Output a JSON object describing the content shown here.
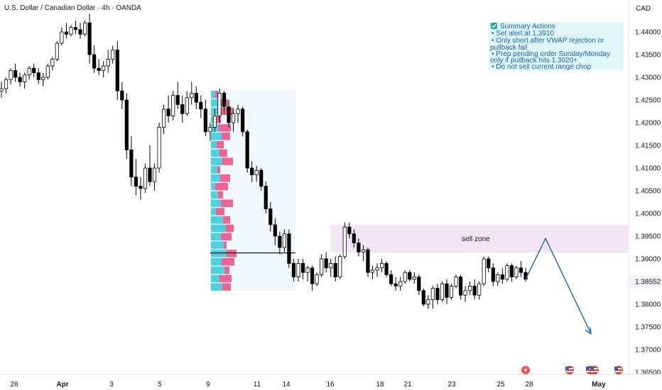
{
  "header": {
    "title": "U.S. Dollar / Canadian Dollar · 4h · OANDA",
    "currency": "CAD"
  },
  "summary": {
    "heading": "Summary Actions",
    "lines": [
      "• Set alert at 1.3910",
      "• Only short after VWAP rejection or",
      "pullback fail",
      "• Prep pending order Sunday/Monday",
      "only if pullback hits 1.3920+",
      "• Do not sell current range chop"
    ]
  },
  "zone": {
    "label": "sell zone",
    "from": 1.3913,
    "to": 1.3975,
    "color": "#f3e5f5"
  },
  "last_price": {
    "value": 1.38552,
    "label": "1.38552"
  },
  "colors": {
    "bullish": "#ffffff",
    "bearish": "#000000",
    "projection": "#1565c0",
    "vp_up": "#4dd0e1",
    "vp_down": "#f06292"
  },
  "chart_data": {
    "type": "candlestick",
    "title": "U.S. Dollar / Canadian Dollar · 4h · OANDA",
    "ylim": [
      1.365,
      1.445
    ],
    "y_ticks": [
      1.365,
      1.37,
      1.375,
      1.38,
      1.385,
      1.39,
      1.395,
      1.4,
      1.405,
      1.41,
      1.415,
      1.42,
      1.425,
      1.43,
      1.435,
      1.44
    ],
    "y_tick_labels": [
      "1.36500",
      "1.37000",
      "1.37500",
      "1.38000",
      "1.38552",
      "1.39000",
      "1.39500",
      "1.40000",
      "1.40500",
      "1.41000",
      "1.41500",
      "1.42000",
      "1.42500",
      "1.43000",
      "1.43500",
      "1.44000"
    ],
    "x_ticks": [
      "28",
      "Apr",
      "3",
      "5",
      "9",
      "11",
      "14",
      "16",
      "18",
      "21",
      "23",
      "25",
      "28",
      "May"
    ],
    "candles": [
      [
        1.427,
        1.429,
        1.4255,
        1.4275
      ],
      [
        1.4275,
        1.43,
        1.4265,
        1.4295
      ],
      [
        1.4295,
        1.432,
        1.4285,
        1.4315
      ],
      [
        1.4315,
        1.433,
        1.429,
        1.43
      ],
      [
        1.43,
        1.431,
        1.428,
        1.429
      ],
      [
        1.429,
        1.431,
        1.4275,
        1.4305
      ],
      [
        1.4305,
        1.4325,
        1.4295,
        1.432
      ],
      [
        1.432,
        1.433,
        1.43,
        1.431
      ],
      [
        1.431,
        1.432,
        1.4285,
        1.4295
      ],
      [
        1.4295,
        1.431,
        1.428,
        1.43
      ],
      [
        1.43,
        1.433,
        1.4295,
        1.4325
      ],
      [
        1.4325,
        1.4345,
        1.4315,
        1.434
      ],
      [
        1.434,
        1.438,
        1.4335,
        1.4375
      ],
      [
        1.4375,
        1.441,
        1.437,
        1.44
      ],
      [
        1.44,
        1.442,
        1.4385,
        1.4395
      ],
      [
        1.4395,
        1.4415,
        1.439,
        1.441
      ],
      [
        1.441,
        1.4425,
        1.4395,
        1.4405
      ],
      [
        1.4405,
        1.442,
        1.4385,
        1.4395
      ],
      [
        1.4395,
        1.4425,
        1.439,
        1.442
      ],
      [
        1.442,
        1.444,
        1.433,
        1.435
      ],
      [
        1.435,
        1.437,
        1.431,
        1.432
      ],
      [
        1.432,
        1.434,
        1.4305,
        1.4315
      ],
      [
        1.4315,
        1.4335,
        1.43,
        1.4325
      ],
      [
        1.4325,
        1.436,
        1.431,
        1.434
      ],
      [
        1.434,
        1.437,
        1.433,
        1.436
      ],
      [
        1.436,
        1.438,
        1.425,
        1.427
      ],
      [
        1.427,
        1.429,
        1.423,
        1.425
      ],
      [
        1.425,
        1.4265,
        1.412,
        1.414
      ],
      [
        1.414,
        1.417,
        1.406,
        1.408
      ],
      [
        1.408,
        1.412,
        1.404,
        1.406
      ],
      [
        1.406,
        1.408,
        1.403,
        1.4055
      ],
      [
        1.4055,
        1.411,
        1.4045,
        1.41
      ],
      [
        1.41,
        1.415,
        1.406,
        1.407
      ],
      [
        1.407,
        1.411,
        1.405,
        1.41
      ],
      [
        1.41,
        1.42,
        1.409,
        1.419
      ],
      [
        1.419,
        1.424,
        1.4175,
        1.423
      ],
      [
        1.423,
        1.426,
        1.42,
        1.4215
      ],
      [
        1.4215,
        1.427,
        1.4205,
        1.426
      ],
      [
        1.426,
        1.429,
        1.423,
        1.424
      ],
      [
        1.424,
        1.426,
        1.42,
        1.422
      ],
      [
        1.422,
        1.427,
        1.4215,
        1.4255
      ],
      [
        1.4255,
        1.429,
        1.424,
        1.4265
      ],
      [
        1.4265,
        1.428,
        1.423,
        1.4245
      ],
      [
        1.4245,
        1.426,
        1.421,
        1.423
      ],
      [
        1.423,
        1.425,
        1.417,
        1.418
      ],
      [
        1.418,
        1.42,
        1.416,
        1.419
      ],
      [
        1.419,
        1.423,
        1.418,
        1.4215
      ],
      [
        1.4215,
        1.4275,
        1.42,
        1.4265
      ],
      [
        1.4265,
        1.427,
        1.422,
        1.4235
      ],
      [
        1.4235,
        1.425,
        1.419,
        1.42
      ],
      [
        1.42,
        1.423,
        1.418,
        1.422
      ],
      [
        1.422,
        1.424,
        1.42,
        1.423
      ],
      [
        1.423,
        1.4235,
        1.417,
        1.418
      ],
      [
        1.418,
        1.4185,
        1.409,
        1.41
      ],
      [
        1.41,
        1.4115,
        1.407,
        1.4085
      ],
      [
        1.4085,
        1.4105,
        1.407,
        1.4095
      ],
      [
        1.4095,
        1.41,
        1.405,
        1.406
      ],
      [
        1.406,
        1.407,
        1.4,
        1.401
      ],
      [
        1.401,
        1.4025,
        1.396,
        1.3975
      ],
      [
        1.3975,
        1.399,
        1.393,
        1.395
      ],
      [
        1.395,
        1.396,
        1.391,
        1.3925
      ],
      [
        1.3925,
        1.3965,
        1.3915,
        1.3955
      ],
      [
        1.3955,
        1.3965,
        1.388,
        1.389
      ],
      [
        1.389,
        1.39,
        1.385,
        1.386
      ],
      [
        1.386,
        1.39,
        1.385,
        1.389
      ],
      [
        1.389,
        1.39,
        1.3855,
        1.387
      ],
      [
        1.387,
        1.3885,
        1.385,
        1.388
      ],
      [
        1.388,
        1.3885,
        1.383,
        1.3845
      ],
      [
        1.3845,
        1.387,
        1.384,
        1.3865
      ],
      [
        1.3865,
        1.391,
        1.386,
        1.39
      ],
      [
        1.39,
        1.3915,
        1.387,
        1.388
      ],
      [
        1.388,
        1.39,
        1.386,
        1.389
      ],
      [
        1.389,
        1.3905,
        1.385,
        1.386
      ],
      [
        1.386,
        1.391,
        1.3855,
        1.3905
      ],
      [
        1.3905,
        1.398,
        1.39,
        1.397
      ],
      [
        1.397,
        1.398,
        1.3945,
        1.3955
      ],
      [
        1.3955,
        1.3965,
        1.3925,
        1.3935
      ],
      [
        1.3935,
        1.3945,
        1.3905,
        1.3915
      ],
      [
        1.3915,
        1.393,
        1.3895,
        1.392
      ],
      [
        1.392,
        1.3925,
        1.386,
        1.387
      ],
      [
        1.387,
        1.3885,
        1.3855,
        1.3875
      ],
      [
        1.3875,
        1.389,
        1.386,
        1.388
      ],
      [
        1.388,
        1.39,
        1.387,
        1.389
      ],
      [
        1.389,
        1.3895,
        1.386,
        1.3865
      ],
      [
        1.3865,
        1.3875,
        1.384,
        1.3845
      ],
      [
        1.3845,
        1.386,
        1.383,
        1.384
      ],
      [
        1.384,
        1.386,
        1.383,
        1.385
      ],
      [
        1.385,
        1.3875,
        1.3845,
        1.387
      ],
      [
        1.387,
        1.3875,
        1.385,
        1.3855
      ],
      [
        1.3855,
        1.387,
        1.3845,
        1.386
      ],
      [
        1.386,
        1.3865,
        1.382,
        1.383
      ],
      [
        1.383,
        1.3835,
        1.3795,
        1.38
      ],
      [
        1.38,
        1.382,
        1.379,
        1.381
      ],
      [
        1.381,
        1.384,
        1.379,
        1.3835
      ],
      [
        1.3835,
        1.3845,
        1.38,
        1.381
      ],
      [
        1.381,
        1.385,
        1.3805,
        1.3845
      ],
      [
        1.3845,
        1.3855,
        1.38,
        1.3815
      ],
      [
        1.3815,
        1.3845,
        1.381,
        1.384
      ],
      [
        1.384,
        1.3865,
        1.3835,
        1.386
      ],
      [
        1.386,
        1.3865,
        1.381,
        1.382
      ],
      [
        1.382,
        1.384,
        1.3805,
        1.383
      ],
      [
        1.383,
        1.385,
        1.382,
        1.384
      ],
      [
        1.384,
        1.3855,
        1.381,
        1.382
      ],
      [
        1.382,
        1.385,
        1.381,
        1.3845
      ],
      [
        1.3845,
        1.3905,
        1.384,
        1.39
      ],
      [
        1.39,
        1.3905,
        1.387,
        1.388
      ],
      [
        1.388,
        1.389,
        1.384,
        1.385
      ],
      [
        1.385,
        1.387,
        1.384,
        1.3865
      ],
      [
        1.3865,
        1.388,
        1.3845,
        1.3855
      ],
      [
        1.3855,
        1.389,
        1.385,
        1.3885
      ],
      [
        1.3885,
        1.389,
        1.385,
        1.386
      ],
      [
        1.386,
        1.3885,
        1.3855,
        1.388
      ],
      [
        1.388,
        1.3895,
        1.386,
        1.387
      ],
      [
        1.387,
        1.388,
        1.385,
        1.3855
      ]
    ],
    "projection": [
      [
        1.3855,
        1.3945
      ],
      [
        1.3945,
        1.3735
      ]
    ],
    "volume_profile_poc": 1.3913
  }
}
